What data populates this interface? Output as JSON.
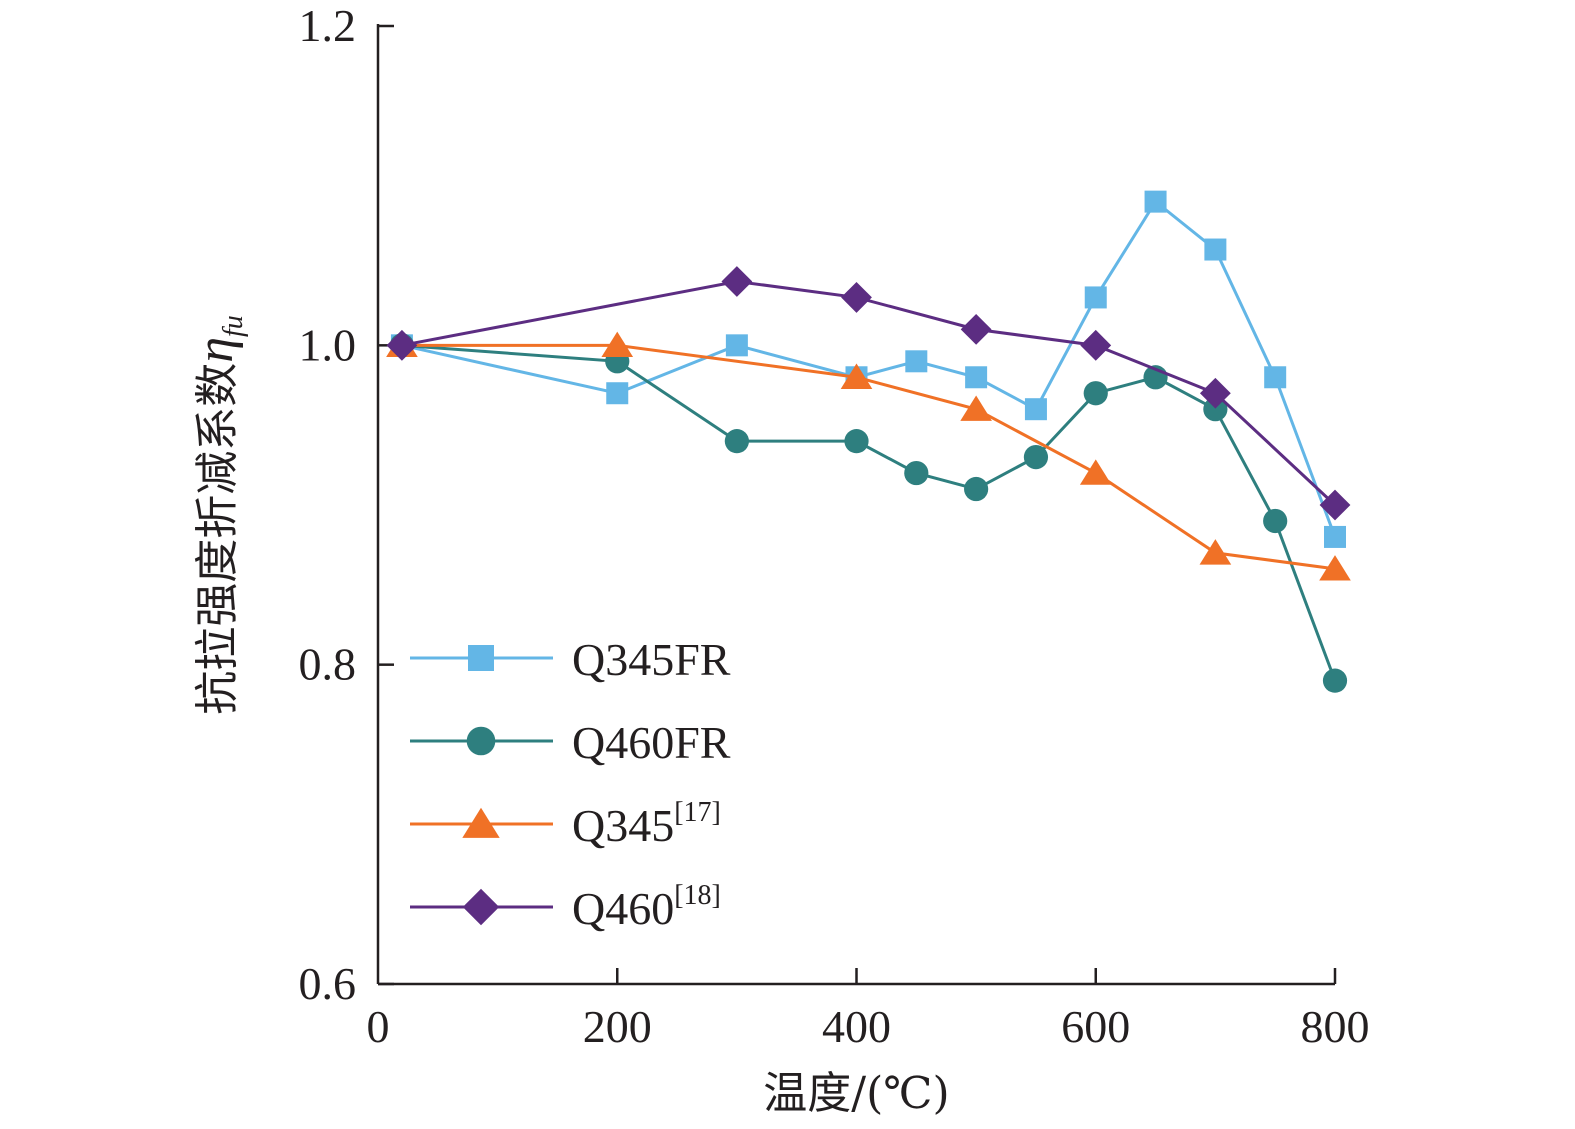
{
  "chart_data": {
    "type": "line",
    "xlabel": "温度/(℃)",
    "ylabel_main": "抗拉强度折减系数",
    "ylabel_symbol": "η",
    "ylabel_subscript": "fu",
    "xlim": [
      0,
      800
    ],
    "ylim": [
      0.6,
      1.2
    ],
    "x_ticks": [
      "0",
      "200",
      "400",
      "600",
      "800"
    ],
    "y_ticks": [
      "0.6",
      "0.8",
      "1.0",
      "1.2"
    ],
    "grid": false,
    "legend_position": "bottom-left",
    "series": [
      {
        "name": "Q345FR",
        "name_base": "Q345FR",
        "name_sup": "",
        "color": "#63b6e6",
        "marker": "square",
        "x": [
          20,
          200,
          300,
          400,
          450,
          500,
          550,
          600,
          650,
          700,
          750,
          800
        ],
        "y": [
          1.0,
          0.97,
          1.0,
          0.98,
          0.99,
          0.98,
          0.96,
          1.03,
          1.09,
          1.06,
          0.98,
          0.88
        ]
      },
      {
        "name": "Q460FR",
        "name_base": "Q460FR",
        "name_sup": "",
        "color": "#2e7f7f",
        "marker": "circle",
        "x": [
          20,
          200,
          300,
          400,
          450,
          500,
          550,
          600,
          650,
          700,
          750,
          800
        ],
        "y": [
          1.0,
          0.99,
          0.94,
          0.94,
          0.92,
          0.91,
          0.93,
          0.97,
          0.98,
          0.96,
          0.89,
          0.79
        ]
      },
      {
        "name": "Q345[17]",
        "name_base": "Q345",
        "name_sup": "[17]",
        "color": "#f07126",
        "marker": "triangle",
        "x": [
          20,
          200,
          400,
          500,
          600,
          700,
          800
        ],
        "y": [
          1.0,
          1.0,
          0.98,
          0.96,
          0.92,
          0.87,
          0.86
        ]
      },
      {
        "name": "Q460[18]",
        "name_base": "Q460",
        "name_sup": "[18]",
        "color": "#5c2d82",
        "marker": "diamond",
        "x": [
          20,
          300,
          400,
          500,
          600,
          700,
          800
        ],
        "y": [
          1.0,
          1.04,
          1.03,
          1.01,
          1.0,
          0.97,
          0.9
        ]
      }
    ]
  }
}
